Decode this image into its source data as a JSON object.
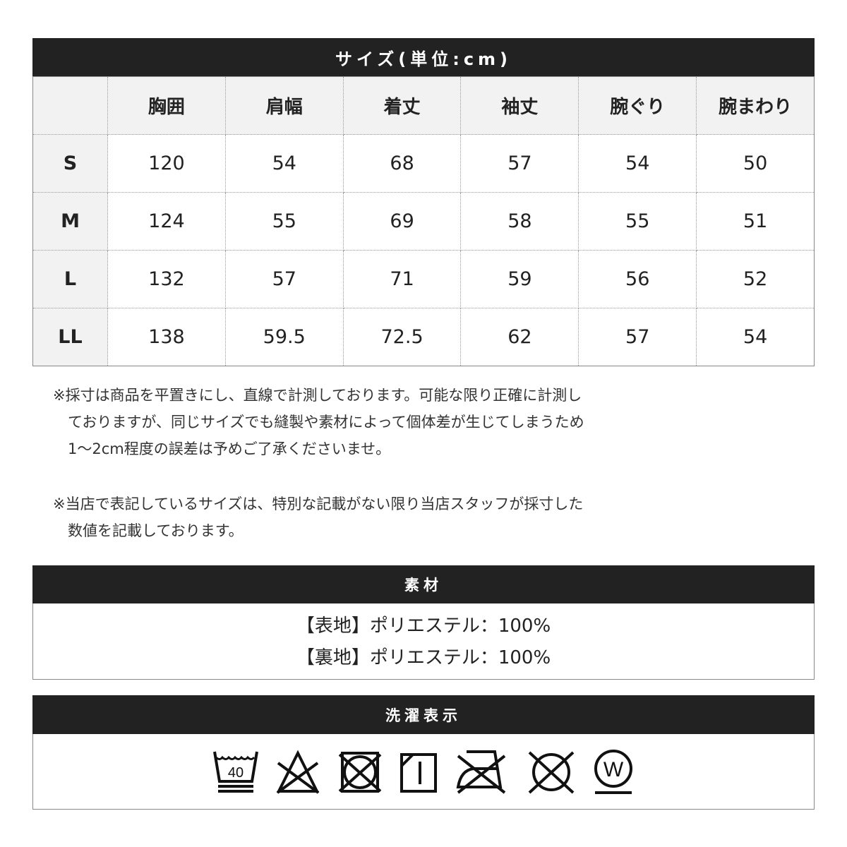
{
  "size_title": "サイズ(単位:cm)",
  "columns": [
    "",
    "胸囲",
    "肩幅",
    "着丈",
    "袖丈",
    "腕ぐり",
    "腕まわり"
  ],
  "rows": [
    {
      "size": "S",
      "values": [
        "120",
        "54",
        "68",
        "57",
        "54",
        "50"
      ]
    },
    {
      "size": "M",
      "values": [
        "124",
        "55",
        "69",
        "58",
        "55",
        "51"
      ]
    },
    {
      "size": "L",
      "values": [
        "132",
        "57",
        "71",
        "59",
        "56",
        "52"
      ]
    },
    {
      "size": "LL",
      "values": [
        "138",
        "59.5",
        "72.5",
        "62",
        "57",
        "54"
      ]
    }
  ],
  "notes": [
    [
      "※採寸は商品を平置きにし、直線で計測しております。可能な限り正確に計測し",
      "　ておりますが、同じサイズでも縫製や素材によって個体差が生じてしまうため",
      "　1～2cm程度の誤差は予めご了承くださいませ。"
    ],
    [
      "※当店で表記しているサイズは、特別な記載がない限り当店スタッフが採寸した",
      "　数値を記載しております。"
    ]
  ],
  "material_title": "素材",
  "materials": [
    "【表地】ポリエステル：100%",
    "【裏地】ポリエステル：100%"
  ],
  "care_title": "洗濯表示",
  "care_icons": [
    "wash-40-gentle-icon",
    "no-bleach-icon",
    "no-tumble-dry-icon",
    "line-dry-shade-icon",
    "no-iron-icon",
    "no-dry-clean-icon",
    "wet-clean-gentle-icon"
  ],
  "wash_temp": "40",
  "wet_letter": "W"
}
